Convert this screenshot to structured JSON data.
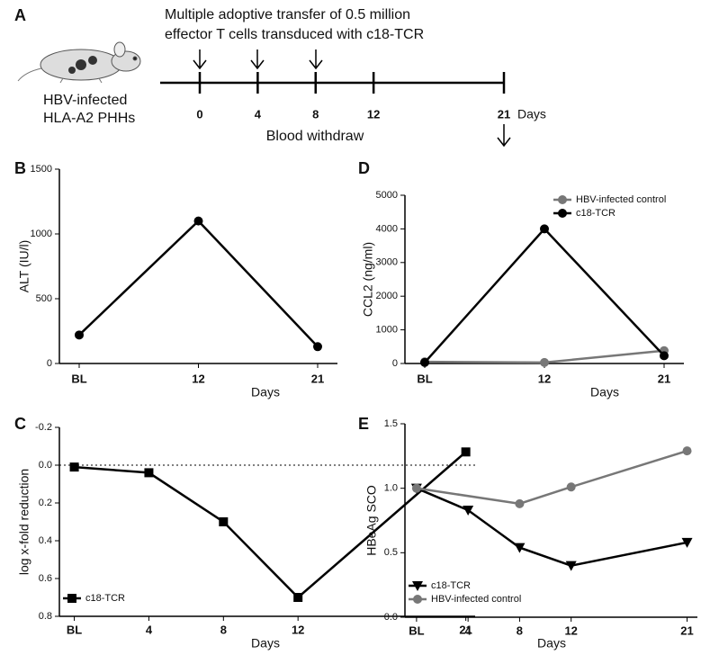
{
  "timeline": {
    "panel": "A",
    "caption": [
      "Multiple adoptive transfer of 0.5 million",
      "effector T cells transduced with c18-TCR"
    ],
    "model": [
      "HBV-infected",
      "HLA-A2 PHHs"
    ],
    "ticks": [
      0,
      4,
      8,
      12,
      21
    ],
    "unit": "Days",
    "note": "Blood withdraw"
  },
  "chart_data": [
    {
      "panel": "B",
      "type": "line",
      "categories": [
        "BL",
        "12",
        "21"
      ],
      "values": [
        220,
        1100,
        130
      ],
      "color": "#000000",
      "marker": "circle",
      "ylim": [
        0,
        1500
      ],
      "yticks": [
        0,
        500,
        1000,
        1500
      ],
      "xlabel": "Days",
      "ylabel": "ALT (IU/l)"
    },
    {
      "panel": "D",
      "type": "line",
      "categories": [
        "BL",
        "12",
        "21"
      ],
      "series": [
        {
          "name": "HBV-infected control",
          "color": "#777777",
          "marker": "circle",
          "values": [
            50,
            30,
            380
          ]
        },
        {
          "name": "c18-TCR",
          "color": "#000000",
          "marker": "circle",
          "values": [
            30,
            4000,
            230
          ]
        }
      ],
      "ylim": [
        0,
        5000
      ],
      "yticks": [
        0,
        1000,
        2000,
        3000,
        4000,
        5000
      ],
      "xlabel": "Days",
      "ylabel": "CCL2 (ng/ml)",
      "legend": "upper right"
    },
    {
      "panel": "C",
      "type": "line",
      "x": [
        0,
        4,
        8,
        12,
        21
      ],
      "xlim": [
        -0.8,
        21.5
      ],
      "xticks": [
        {
          "value": 0,
          "label": "BL"
        },
        4,
        8,
        12,
        21
      ],
      "series": [
        {
          "name": "c18-TCR",
          "color": "#000000",
          "marker": "square",
          "values": [
            0.01,
            0.04,
            0.3,
            0.7,
            -0.07
          ]
        }
      ],
      "ylim": [
        -0.2,
        0.8
      ],
      "y_inverted": true,
      "yticks": [
        -0.2,
        {
          "value": 0,
          "label": "0.0"
        },
        0.2,
        0.4,
        0.6,
        0.8
      ],
      "reference_line": 0,
      "xlabel": "Days",
      "ylabel": "log x-fold reduction",
      "legend": "lower left"
    },
    {
      "panel": "E",
      "type": "line",
      "xlim": [
        -0.9,
        21.8
      ],
      "xticks": [
        {
          "value": 0,
          "label": "BL"
        },
        4,
        8,
        12,
        21
      ],
      "series": [
        {
          "name": "c18-TCR",
          "color": "#000000",
          "marker": "triangle-down",
          "x": [
            0,
            4,
            8,
            12,
            21
          ],
          "values": [
            1.0,
            0.83,
            0.54,
            0.4,
            0.58
          ]
        },
        {
          "name": "HBV-infected control",
          "color": "#777777",
          "marker": "circle",
          "x": [
            0,
            8,
            12,
            21
          ],
          "values": [
            1.0,
            0.88,
            1.01,
            1.29
          ]
        }
      ],
      "ylim": [
        0,
        1.5
      ],
      "yticks": [
        {
          "value": 0,
          "label": "0.0"
        },
        0.5,
        {
          "value": 1,
          "label": "1.0"
        },
        1.5
      ],
      "xlabel": "Days",
      "ylabel": "HBeAg SCO",
      "legend": "lower left"
    }
  ]
}
